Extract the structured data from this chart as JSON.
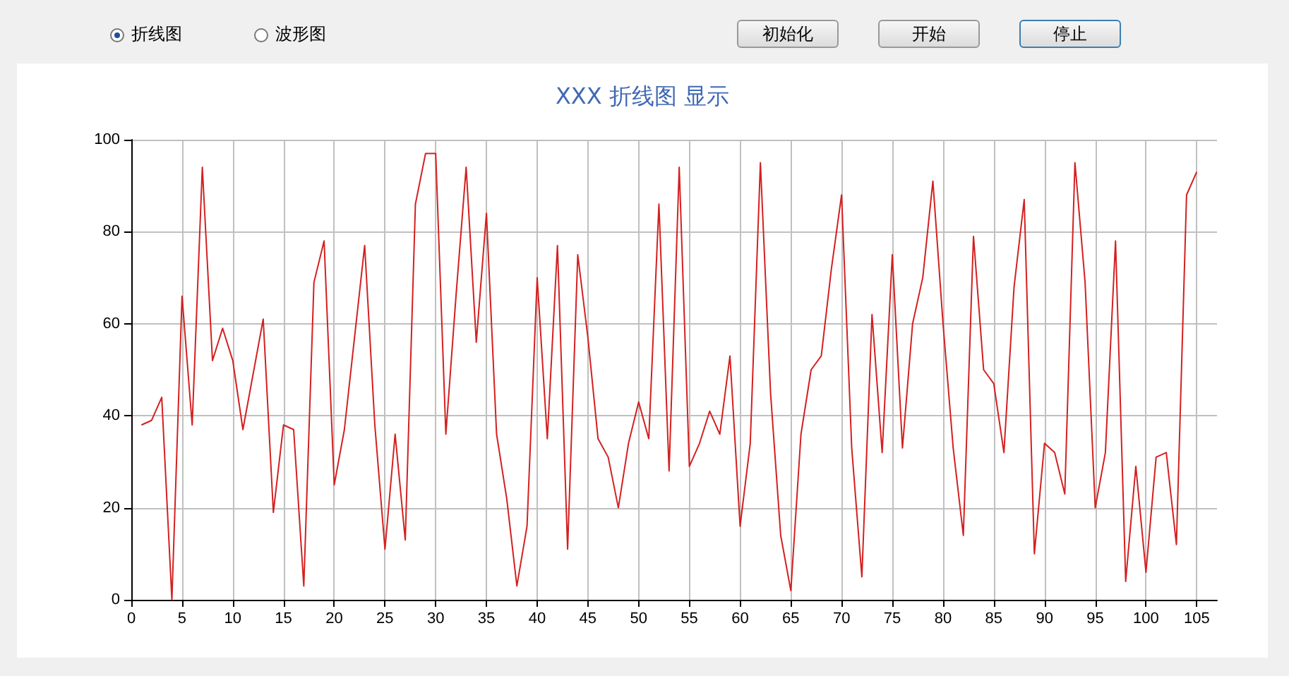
{
  "chart_data": {
    "type": "line",
    "title": "XXX 折线图 显示",
    "annotations": [
      "折线图",
      "波形图",
      "初始化",
      "开始",
      "停止"
    ],
    "x": [
      1,
      2,
      3,
      4,
      5,
      6,
      7,
      8,
      9,
      10,
      11,
      12,
      13,
      14,
      15,
      16,
      17,
      18,
      19,
      20,
      21,
      22,
      23,
      24,
      25,
      26,
      27,
      28,
      29,
      30,
      31,
      32,
      33,
      34,
      35,
      36,
      37,
      38,
      39,
      40,
      41,
      42,
      43,
      44,
      45,
      46,
      47,
      48,
      49,
      50,
      51,
      52,
      53,
      54,
      55,
      56,
      57,
      58,
      59,
      60,
      61,
      62,
      63,
      64,
      65,
      66,
      67,
      68,
      69,
      70,
      71,
      72,
      73,
      74,
      75,
      76,
      77,
      78,
      79,
      80,
      81,
      82,
      83,
      84,
      85,
      86,
      87,
      88,
      89,
      90,
      91,
      92,
      93,
      94,
      95,
      96,
      97,
      98,
      99,
      100,
      101,
      102,
      103,
      104,
      105
    ],
    "series": [
      {
        "color": "#d42020",
        "values": [
          38,
          39,
          44,
          0,
          66,
          38,
          94,
          52,
          59,
          52,
          37,
          49,
          61,
          19,
          38,
          37,
          3,
          69,
          78,
          25,
          37,
          57,
          77,
          38,
          11,
          36,
          13,
          86,
          97,
          97,
          36,
          66,
          94,
          56,
          84,
          36,
          22,
          3,
          16,
          70,
          35,
          77,
          11,
          75,
          57,
          35,
          31,
          20,
          34,
          43,
          35,
          86,
          28,
          94,
          29,
          34,
          41,
          36,
          53,
          16,
          34,
          95,
          45,
          14,
          2,
          36,
          50,
          53,
          72,
          88,
          33,
          5,
          62,
          32,
          75,
          33,
          60,
          70,
          91,
          60,
          33,
          14,
          79,
          50,
          47,
          32,
          68,
          87,
          10,
          34,
          32,
          23,
          95,
          69,
          20,
          32,
          78,
          4,
          29,
          6,
          31,
          32,
          12,
          88,
          93
        ]
      }
    ],
    "xlim": [
      0,
      107
    ],
    "xticks": [
      0,
      5,
      10,
      15,
      20,
      25,
      30,
      35,
      40,
      45,
      50,
      55,
      60,
      65,
      70,
      75,
      80,
      85,
      90,
      95,
      100,
      105
    ],
    "ylim": [
      0,
      100
    ],
    "yticks": [
      0,
      20,
      40,
      60,
      80,
      100
    ],
    "grid": true,
    "marker": "none",
    "line_style": "solid"
  }
}
